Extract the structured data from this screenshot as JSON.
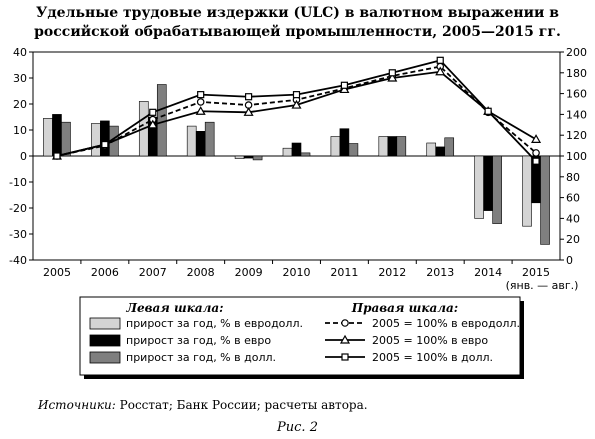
{
  "chart_data": {
    "type": "bar",
    "title": "Удельные трудовые издержки (ULC) в валютном выражении в российской обрабатывающей промышленности, 2005—2015 гг.",
    "categories": [
      "2005",
      "2006",
      "2007",
      "2008",
      "2009",
      "2010",
      "2011",
      "2012",
      "2013",
      "2014",
      "2015"
    ],
    "last_category_note": "(янв. — авг.)",
    "left_axis": {
      "ylim": [
        -40,
        40
      ],
      "ticks": [
        "-40",
        "-30",
        "-20",
        "-10",
        "0",
        "10",
        "20",
        "30",
        "40"
      ]
    },
    "right_axis": {
      "ylim": [
        0,
        200
      ],
      "ticks": [
        "0",
        "20",
        "40",
        "60",
        "80",
        "100",
        "120",
        "140",
        "160",
        "180",
        "200"
      ]
    },
    "bar_series": [
      {
        "name": "прирост за год, % в евродолл.",
        "axis": "left",
        "color": "#d4d4d4",
        "values": [
          14.5,
          12.5,
          21,
          11.5,
          -1,
          3,
          7.5,
          7.5,
          5,
          -24,
          -27
        ]
      },
      {
        "name": "прирост за год, % в евро",
        "axis": "left",
        "color": "#000000",
        "values": [
          16,
          13.5,
          15,
          9.5,
          -0.8,
          5,
          10.5,
          7.5,
          3.5,
          -21,
          -18
        ]
      },
      {
        "name": "прирост за год, % в долл.",
        "axis": "left",
        "color": "#7f7f7f",
        "values": [
          13,
          11.5,
          27.5,
          13,
          -1.5,
          1.2,
          4.8,
          7.5,
          7,
          -26,
          -34
        ]
      }
    ],
    "line_series": [
      {
        "name": "2005 = 100% в евродолл.",
        "axis": "right",
        "marker": "circle",
        "dash": true,
        "values": [
          100,
          110,
          135,
          152,
          149,
          154,
          165,
          177,
          186,
          142,
          103
        ]
      },
      {
        "name": "2005 = 100% в евро",
        "axis": "right",
        "marker": "triangle",
        "dash": false,
        "values": [
          100,
          111,
          130,
          143,
          142,
          149,
          164,
          175,
          181,
          143,
          116
        ]
      },
      {
        "name": "2005 = 100% в долл.",
        "axis": "right",
        "marker": "square",
        "dash": false,
        "values": [
          100,
          111,
          142,
          159,
          157,
          159,
          168,
          180,
          192,
          143,
          95
        ]
      }
    ],
    "legend": {
      "left_title": "Левая шкала:",
      "right_title": "Правая шкала:"
    }
  },
  "footer": {
    "source_lead": "Источники:",
    "source_text": " Росстат; Банк России; расчеты автора.",
    "caption": "Рис. 2"
  }
}
